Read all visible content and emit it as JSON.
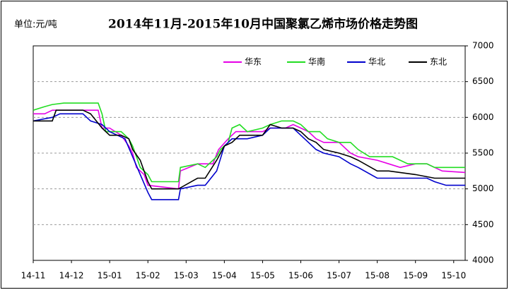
{
  "chart_data": {
    "type": "line",
    "title": "2014年11月-2015年10月中国聚氯乙烯市场价格走势图",
    "unit": "单位:元/吨",
    "xlim": [
      0,
      11.3
    ],
    "xticks": [
      {
        "value": 0,
        "label": "14-11"
      },
      {
        "value": 1,
        "label": "14-12"
      },
      {
        "value": 2,
        "label": "15-01"
      },
      {
        "value": 3,
        "label": "15-02"
      },
      {
        "value": 4,
        "label": "15-03"
      },
      {
        "value": 5,
        "label": "15-04"
      },
      {
        "value": 6,
        "label": "15-05"
      },
      {
        "value": 7,
        "label": "15-06"
      },
      {
        "value": 8,
        "label": "15-07"
      },
      {
        "value": 9,
        "label": "15-08"
      },
      {
        "value": 10,
        "label": "15-09"
      },
      {
        "value": 11,
        "label": "15-10"
      }
    ],
    "ylim": [
      4000,
      7000
    ],
    "yticks": [
      4000,
      4500,
      5000,
      5500,
      6000,
      6500,
      7000
    ],
    "grid": true,
    "legend": "top-right",
    "series": [
      {
        "name": "华东",
        "color": "#e600e6",
        "x": [
          0,
          0.3,
          0.5,
          1.7,
          1.8,
          2.0,
          2.3,
          2.5,
          2.6,
          2.7,
          2.9,
          3.0,
          3.8,
          3.85,
          4.3,
          4.5,
          4.7,
          4.85,
          5.1,
          5.3,
          5.5,
          6.0,
          6.2,
          6.6,
          6.8,
          7.0,
          7.2,
          7.4,
          7.6,
          8.0,
          8.3,
          8.5,
          9.0,
          9.3,
          9.6,
          10.0,
          10.3,
          10.5,
          10.7,
          11.3
        ],
        "values": [
          6050,
          6050,
          6100,
          6100,
          5850,
          5850,
          5750,
          5600,
          5500,
          5300,
          5200,
          5050,
          5000,
          5250,
          5350,
          5350,
          5350,
          5550,
          5700,
          5800,
          5800,
          5800,
          5850,
          5850,
          5900,
          5850,
          5800,
          5700,
          5650,
          5650,
          5500,
          5450,
          5400,
          5350,
          5300,
          5350,
          5350,
          5300,
          5250,
          5230
        ]
      },
      {
        "name": "华南",
        "color": "#22dd22",
        "x": [
          0,
          0.3,
          0.5,
          0.8,
          1.7,
          1.8,
          1.9,
          2.3,
          2.5,
          2.6,
          2.8,
          3.0,
          3.1,
          3.8,
          3.85,
          4.3,
          4.5,
          4.8,
          4.9,
          5.1,
          5.2,
          5.4,
          5.6,
          6.0,
          6.2,
          6.5,
          6.8,
          7.0,
          7.2,
          7.5,
          7.7,
          8.0,
          8.3,
          8.5,
          8.8,
          9.4,
          9.6,
          9.8,
          10.0,
          10.3,
          10.5,
          11.3
        ],
        "values": [
          6100,
          6150,
          6180,
          6200,
          6200,
          6050,
          5800,
          5800,
          5700,
          5600,
          5300,
          5200,
          5100,
          5100,
          5300,
          5350,
          5300,
          5450,
          5550,
          5650,
          5850,
          5900,
          5800,
          5850,
          5900,
          5950,
          5950,
          5900,
          5800,
          5800,
          5700,
          5650,
          5650,
          5550,
          5450,
          5450,
          5400,
          5350,
          5350,
          5350,
          5300,
          5300
        ]
      },
      {
        "name": "华北",
        "color": "#0000cc",
        "x": [
          0,
          0.5,
          0.7,
          1.3,
          1.5,
          1.8,
          2.0,
          2.2,
          2.4,
          2.6,
          2.8,
          3.0,
          3.1,
          3.8,
          3.85,
          4.3,
          4.5,
          4.8,
          5.0,
          5.2,
          5.6,
          6.0,
          6.2,
          6.8,
          7.0,
          7.2,
          7.4,
          7.6,
          8.0,
          8.3,
          8.5,
          9.0,
          10.3,
          10.5,
          10.8,
          11.3
        ],
        "values": [
          5950,
          6000,
          6050,
          6050,
          5950,
          5900,
          5800,
          5750,
          5700,
          5450,
          5200,
          4950,
          4850,
          4850,
          5000,
          5050,
          5050,
          5250,
          5600,
          5700,
          5700,
          5750,
          5850,
          5850,
          5750,
          5650,
          5550,
          5500,
          5450,
          5350,
          5300,
          5150,
          5150,
          5100,
          5050,
          5050
        ]
      },
      {
        "name": "东北",
        "color": "#000000",
        "x": [
          0,
          0.5,
          0.6,
          1.3,
          1.5,
          1.8,
          2.0,
          2.3,
          2.5,
          2.6,
          2.8,
          3.0,
          3.1,
          3.8,
          4.3,
          4.5,
          4.8,
          5.0,
          5.2,
          5.4,
          6.0,
          6.2,
          6.5,
          6.8,
          7.0,
          7.2,
          7.4,
          7.6,
          8.0,
          8.3,
          8.5,
          9.0,
          9.3,
          10.0,
          10.5,
          11.3
        ],
        "values": [
          5950,
          5950,
          6100,
          6100,
          6050,
          5850,
          5750,
          5750,
          5700,
          5550,
          5400,
          5100,
          5000,
          5000,
          5150,
          5150,
          5400,
          5600,
          5650,
          5750,
          5750,
          5900,
          5850,
          5850,
          5800,
          5700,
          5650,
          5550,
          5500,
          5450,
          5400,
          5250,
          5250,
          5200,
          5150,
          5150
        ]
      }
    ]
  }
}
